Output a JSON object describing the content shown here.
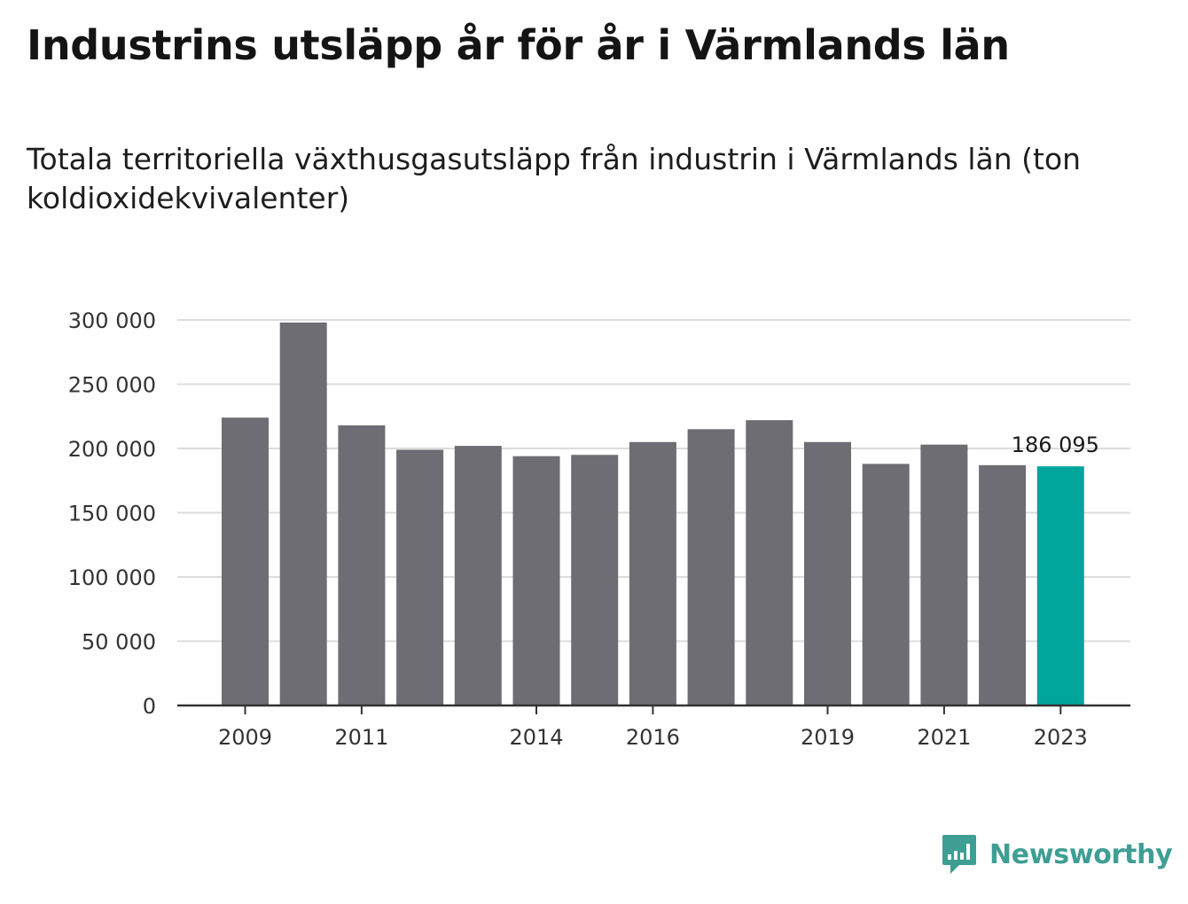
{
  "title": "Industrins utsläpp år för år i Värmlands län",
  "subtitle": "Totala territoriella växthusgasutsläpp från industrin i Värmlands län (ton koldioxidekvivalenter)",
  "brand": {
    "name": "Newsworthy",
    "icon": "newsworthy-logo-icon",
    "color": "#3e9e94"
  },
  "chart_data": {
    "type": "bar",
    "title": "Industrins utsläpp år för år i Värmlands län",
    "subtitle": "Totala territoriella växthusgasutsläpp från industrin i Värmlands län (ton koldioxidekvivalenter)",
    "xlabel": "",
    "ylabel": "",
    "categories": [
      "2009",
      "2010",
      "2011",
      "2012",
      "2013",
      "2014",
      "2015",
      "2016",
      "2017",
      "2018",
      "2019",
      "2020",
      "2021",
      "2022",
      "2023"
    ],
    "values": [
      224000,
      298000,
      218000,
      199000,
      202000,
      194000,
      195000,
      205000,
      215000,
      222000,
      205000,
      188000,
      203000,
      187000,
      186095
    ],
    "x_tick_labels": [
      "2009",
      "2011",
      "2014",
      "2016",
      "2019",
      "2021",
      "2023"
    ],
    "y_ticks": [
      0,
      50000,
      100000,
      150000,
      200000,
      250000,
      300000
    ],
    "y_tick_labels": [
      "0",
      "50 000",
      "100 000",
      "150 000",
      "200 000",
      "250 000",
      "300 000"
    ],
    "ylim": [
      0,
      300000
    ],
    "grid": true,
    "bar_color": "#6e6d74",
    "highlight_color": "#00a59b",
    "highlight_index": 14,
    "data_labels": [
      {
        "category": "2023",
        "text": "186 095"
      }
    ],
    "axis_color": "#333333",
    "grid_color": "#dcdcdc"
  }
}
